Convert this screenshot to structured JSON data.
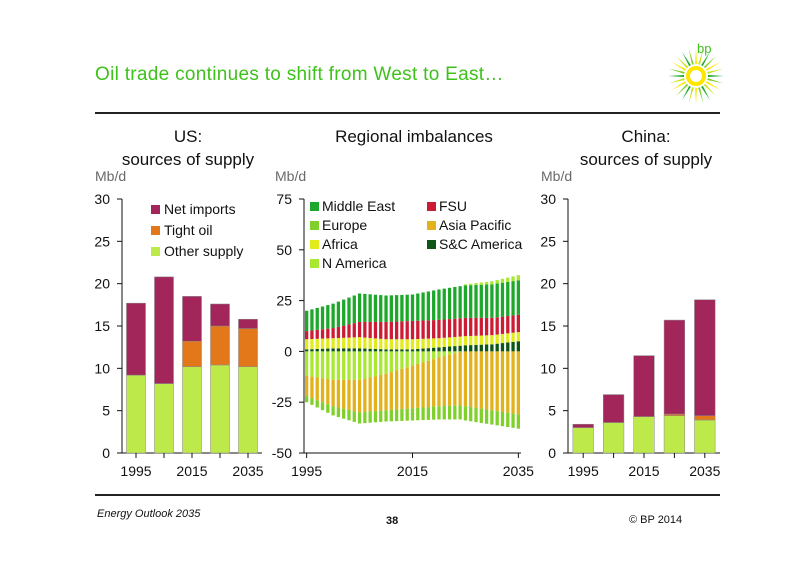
{
  "slide": {
    "title": "Oil trade continues to shift from West to East…",
    "logo_text": "bp",
    "footer_left": "Energy Outlook 2035",
    "page_number": "38",
    "copyright": "© BP 2014"
  },
  "colors": {
    "title_green": "#3ec21b",
    "net_imports": "#a3265a",
    "tight_oil": "#e3781b",
    "other_supply": "#bde94a",
    "middle_east": "#1ea82b",
    "fsu": "#cc1b34",
    "europe": "#7fd02a",
    "asia_pacific": "#e1b21b",
    "africa": "#e2ec1c",
    "sc_america": "#0d5518",
    "n_america": "#a8e830"
  },
  "chart_data": [
    {
      "type": "bar",
      "stacked": true,
      "title": "US: sources of supply",
      "ylabel": "Mb/d",
      "ylim": [
        0,
        30
      ],
      "yticks": [
        "0",
        "5",
        "10",
        "15",
        "20",
        "25",
        "30"
      ],
      "xtick_labels": [
        "1995",
        "2015",
        "2035"
      ],
      "categories": [
        "1995",
        "2005",
        "2015",
        "2025",
        "2035"
      ],
      "legend_placement": "top-right",
      "series": [
        {
          "name": "Other supply",
          "values": [
            9.2,
            8.2,
            10.2,
            10.4,
            10.2
          ]
        },
        {
          "name": "Tight oil",
          "values": [
            0.0,
            0.0,
            3.0,
            4.6,
            4.5
          ]
        },
        {
          "name": "Net imports",
          "values": [
            8.5,
            12.6,
            5.3,
            2.6,
            1.1
          ]
        }
      ]
    },
    {
      "type": "bar",
      "stacked": true,
      "title": "Regional imbalances",
      "ylabel": "Mb/d",
      "ylim": [
        -50,
        75
      ],
      "yticks": [
        "-50",
        "-25",
        "0",
        "25",
        "50",
        "75"
      ],
      "xtick_labels": [
        "1995",
        "2015",
        "2035"
      ],
      "x_start": 1995,
      "x_end": 2035,
      "legend_placement": "top",
      "series": [
        {
          "name": "Middle East",
          "anchors": [
            [
              1995,
              10
            ],
            [
              2000,
              12
            ],
            [
              2005,
              14
            ],
            [
              2010,
              13
            ],
            [
              2015,
              13
            ],
            [
              2020,
              15
            ],
            [
              2025,
              16
            ],
            [
              2030,
              16.5
            ],
            [
              2035,
              17
            ]
          ]
        },
        {
          "name": "FSU",
          "anchors": [
            [
              1995,
              4
            ],
            [
              2000,
              5
            ],
            [
              2005,
              7.5
            ],
            [
              2010,
              8.5
            ],
            [
              2015,
              9
            ],
            [
              2020,
              9
            ],
            [
              2025,
              9
            ],
            [
              2030,
              8.5
            ],
            [
              2035,
              8.5
            ]
          ]
        },
        {
          "name": "Europe",
          "anchors": [
            [
              1995,
              -3
            ],
            [
              2000,
              -4.5
            ],
            [
              2005,
              -5.5
            ],
            [
              2010,
              -5.5
            ],
            [
              2015,
              -6
            ],
            [
              2020,
              -6.5
            ],
            [
              2025,
              -7
            ],
            [
              2030,
              -7
            ],
            [
              2035,
              -7
            ]
          ]
        },
        {
          "name": "Asia Pacific",
          "anchors": [
            [
              1995,
              -10
            ],
            [
              2000,
              -13
            ],
            [
              2005,
              -16
            ],
            [
              2010,
              -18
            ],
            [
              2015,
              -21
            ],
            [
              2020,
              -24
            ],
            [
              2025,
              -27
            ],
            [
              2030,
              -29
            ],
            [
              2035,
              -31
            ]
          ]
        },
        {
          "name": "Africa",
          "anchors": [
            [
              1995,
              5
            ],
            [
              2000,
              5
            ],
            [
              2005,
              5.5
            ],
            [
              2010,
              5
            ],
            [
              2015,
              5
            ],
            [
              2020,
              4.5
            ],
            [
              2025,
              4.5
            ],
            [
              2030,
              4.5
            ],
            [
              2035,
              4.5
            ]
          ]
        },
        {
          "name": "S&C America",
          "anchors": [
            [
              1995,
              1
            ],
            [
              2000,
              1.5
            ],
            [
              2005,
              1.5
            ],
            [
              2010,
              1
            ],
            [
              2015,
              1
            ],
            [
              2020,
              2
            ],
            [
              2025,
              3
            ],
            [
              2030,
              3.5
            ],
            [
              2035,
              5
            ]
          ]
        },
        {
          "name": "N America",
          "anchors": [
            [
              1995,
              -12
            ],
            [
              2000,
              -14
            ],
            [
              2005,
              -14
            ],
            [
              2010,
              -11
            ],
            [
              2015,
              -7
            ],
            [
              2020,
              -3
            ],
            [
              2025,
              0.5
            ],
            [
              2030,
              1.5
            ],
            [
              2035,
              2.5
            ]
          ]
        }
      ]
    },
    {
      "type": "bar",
      "stacked": true,
      "title": "China: sources of supply",
      "ylabel": "Mb/d",
      "ylim": [
        0,
        30
      ],
      "yticks": [
        "0",
        "5",
        "10",
        "15",
        "20",
        "25",
        "30"
      ],
      "xtick_labels": [
        "1995",
        "2015",
        "2035"
      ],
      "categories": [
        "1995",
        "2005",
        "2015",
        "2025",
        "2035"
      ],
      "series": [
        {
          "name": "Other supply",
          "values": [
            3.0,
            3.6,
            4.3,
            4.4,
            3.9
          ]
        },
        {
          "name": "Tight oil",
          "values": [
            0.0,
            0.0,
            0.0,
            0.2,
            0.5
          ]
        },
        {
          "name": "Net imports",
          "values": [
            0.4,
            3.3,
            7.2,
            11.1,
            13.7
          ]
        }
      ]
    }
  ]
}
